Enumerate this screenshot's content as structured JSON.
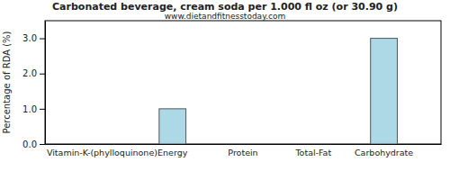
{
  "chart_data": {
    "type": "bar",
    "title": "Carbonated beverage, cream soda per 1.000 fl oz (or 30.90 g)",
    "subtitle": "www.dietandfitnesstoday.com",
    "y_label": "Percentage of RDA (%)",
    "categories": [
      "Vitamin-K-(phylloquinone)",
      "Energy",
      "Protein",
      "Total-Fat",
      "Carbohydrate"
    ],
    "values": [
      0,
      1,
      0,
      0,
      3
    ],
    "color": "#add8e6",
    "ylim": [
      0,
      3.5
    ],
    "yticks": [
      {
        "value": 0,
        "label": "0.0"
      },
      {
        "value": 1,
        "label": "1.0"
      },
      {
        "value": 2,
        "label": "2.0"
      },
      {
        "value": 3,
        "label": "3.0"
      }
    ],
    "grid": false
  }
}
